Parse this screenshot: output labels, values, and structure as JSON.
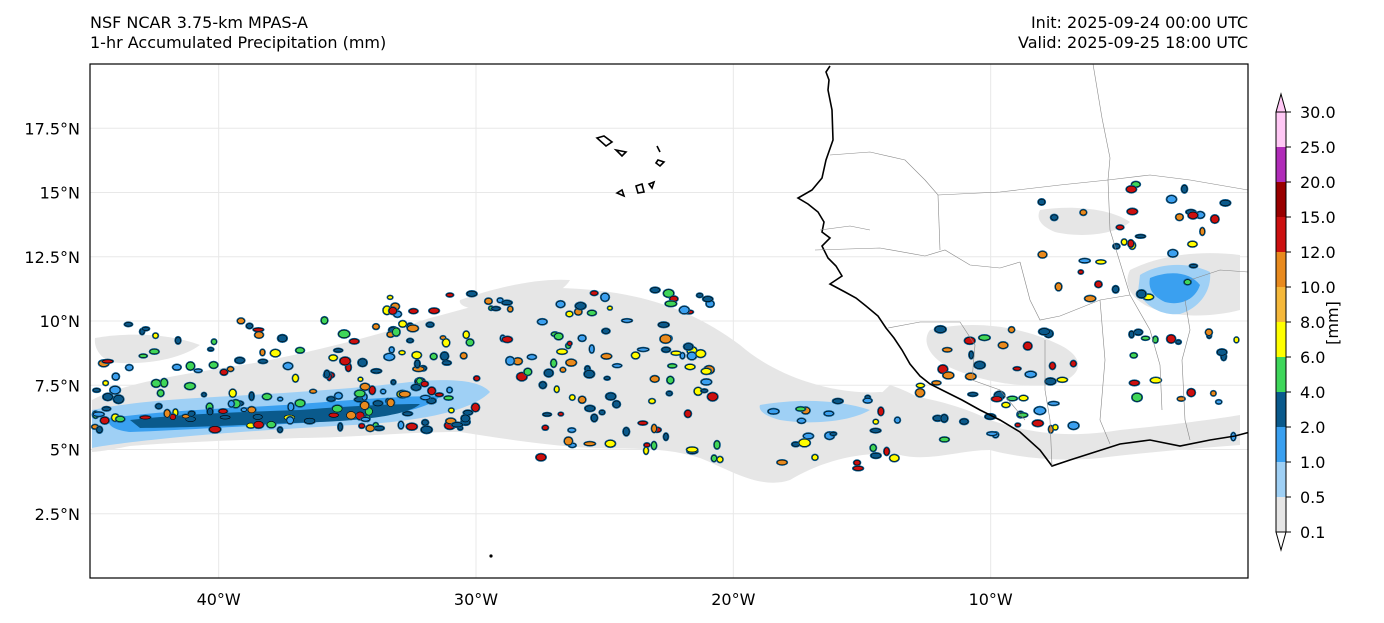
{
  "header": {
    "model_title": "NSF NCAR 3.75-km MPAS-A",
    "field_title": "1-hr Accumulated Precipitation (mm)",
    "init_text": "Init: 2025-09-24 00:00 UTC",
    "valid_text": "Valid: 2025-09-25 18:00 UTC"
  },
  "map": {
    "lon_range": [
      -45,
      0
    ],
    "lat_range": [
      0,
      20
    ],
    "lon_ticks": [
      {
        "value": -40,
        "label": "40°W"
      },
      {
        "value": -30,
        "label": "30°W"
      },
      {
        "value": -20,
        "label": "20°W"
      },
      {
        "value": -10,
        "label": "10°W"
      }
    ],
    "lat_ticks": [
      {
        "value": 2.5,
        "label": "2.5°N"
      },
      {
        "value": 5,
        "label": "5°N"
      },
      {
        "value": 7.5,
        "label": "7.5°N"
      },
      {
        "value": 10,
        "label": "10°N"
      },
      {
        "value": 12.5,
        "label": "12.5°N"
      },
      {
        "value": 15,
        "label": "15°N"
      },
      {
        "value": 17.5,
        "label": "17.5°N"
      }
    ],
    "gridlines": true
  },
  "colorbar": {
    "unit_label": "[mm]",
    "levels": [
      "0.1",
      "0.5",
      "1.0",
      "2.0",
      "4.0",
      "6.0",
      "8.0",
      "10.0",
      "12.0",
      "15.0",
      "20.0",
      "25.0",
      "30.0"
    ],
    "colors": [
      "#e6e6e6",
      "#9fd0f5",
      "#3aa0f0",
      "#0a5a8c",
      "#3ed65a",
      "#ffff00",
      "#f5b83a",
      "#e88a1e",
      "#cc1010",
      "#990000",
      "#b02cb8",
      "#ffc8f5"
    ],
    "extend": "both"
  }
}
